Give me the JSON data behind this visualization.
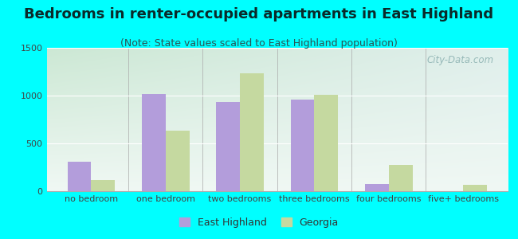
{
  "title": "Bedrooms in renter-occupied apartments in East Highland",
  "subtitle": "(Note: State values scaled to East Highland population)",
  "categories": [
    "no bedroom",
    "one bedroom",
    "two bedrooms",
    "three bedrooms",
    "four bedrooms",
    "five+ bedrooms"
  ],
  "east_highland": [
    310,
    1020,
    930,
    960,
    75,
    0
  ],
  "georgia": [
    115,
    630,
    1230,
    1010,
    275,
    65
  ],
  "bar_color_eh": "#b39ddb",
  "bar_color_ga": "#c5d9a0",
  "background_color": "#00ffff",
  "ylim": [
    0,
    1500
  ],
  "yticks": [
    0,
    500,
    1000,
    1500
  ],
  "legend_eh": "East Highland",
  "legend_ga": "Georgia",
  "title_fontsize": 13,
  "subtitle_fontsize": 9,
  "axis_label_fontsize": 8,
  "watermark": "City-Data.com"
}
